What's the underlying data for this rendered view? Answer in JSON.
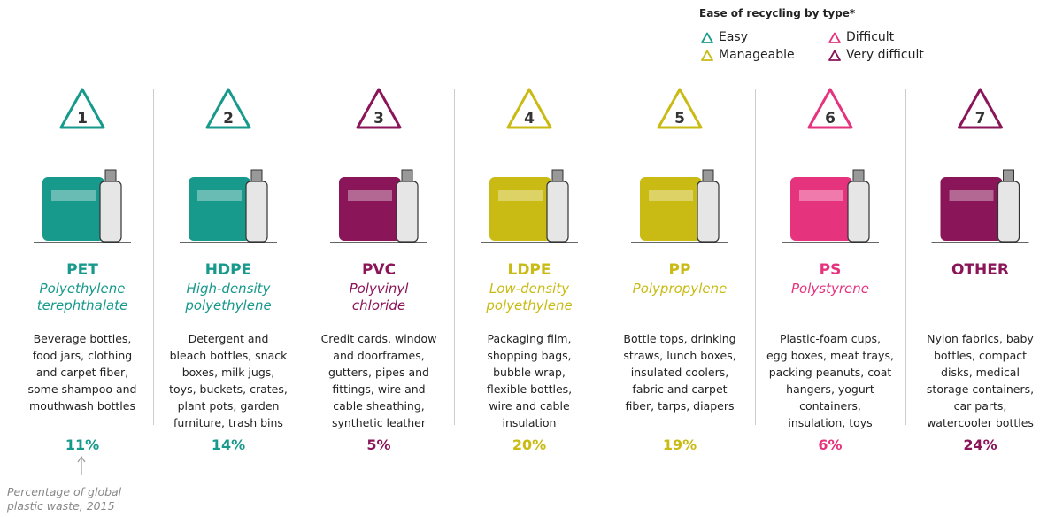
{
  "legend": {
    "title": "Ease of recycling by type*",
    "items": [
      {
        "label": "Easy",
        "color": "#17998c"
      },
      {
        "label": "Manageable",
        "color": "#c9bb14"
      },
      {
        "label": "Difficult",
        "color": "#e6337e"
      },
      {
        "label": "Very difficult",
        "color": "#8a1659"
      }
    ]
  },
  "columns": [
    {
      "number": "1",
      "code": "PET",
      "color": "#17998c",
      "name": [
        "Polyethylene",
        "terephthalate"
      ],
      "description": [
        "Beverage bottles,",
        "food jars, clothing",
        "and carpet fiber,",
        "some shampoo and",
        "mouthwash bottles"
      ],
      "share": "11%"
    },
    {
      "number": "2",
      "code": "HDPE",
      "color": "#17998c",
      "name": [
        "High-density",
        "polyethylene"
      ],
      "description": [
        "Detergent and",
        "bleach bottles, snack",
        "boxes, milk jugs,",
        "toys, buckets, crates,",
        "plant pots, garden",
        "furniture, trash bins"
      ],
      "share": "14%"
    },
    {
      "number": "3",
      "code": "PVC",
      "color": "#8a1659",
      "name": [
        "Polyvinyl",
        "chloride"
      ],
      "description": [
        "Credit cards, window",
        "and doorframes,",
        "gutters, pipes and",
        "fittings, wire and",
        "cable sheathing,",
        "synthetic leather"
      ],
      "share": "5%"
    },
    {
      "number": "4",
      "code": "LDPE",
      "color": "#c9bb14",
      "name": [
        "Low-density",
        "polyethylene"
      ],
      "description": [
        "Packaging film,",
        "shopping bags,",
        "bubble wrap,",
        "flexible bottles,",
        "wire and cable",
        "insulation"
      ],
      "share": "20%"
    },
    {
      "number": "5",
      "code": "PP",
      "color": "#c9bb14",
      "name": [
        "Polypropylene"
      ],
      "description": [
        "Bottle tops, drinking",
        "straws, lunch boxes,",
        "insulated coolers,",
        "fabric and carpet",
        "fiber, tarps, diapers"
      ],
      "share": "19%"
    },
    {
      "number": "6",
      "code": "PS",
      "color": "#e6337e",
      "name": [
        "Polystyrene"
      ],
      "description": [
        "Plastic-foam cups,",
        "egg boxes, meat trays,",
        "packing peanuts, coat",
        "hangers, yogurt",
        "containers,",
        "insulation, toys"
      ],
      "share": "6%"
    },
    {
      "number": "7",
      "code": "OTHER",
      "color": "#8a1659",
      "name": [],
      "description": [
        "Nylon fabrics, baby",
        "bottles, compact",
        "disks, medical",
        "storage containers,",
        "car parts,",
        "watercooler bottles"
      ],
      "share": "24%"
    }
  ],
  "note": [
    "Percentage of global",
    "plastic waste, 2015"
  ]
}
